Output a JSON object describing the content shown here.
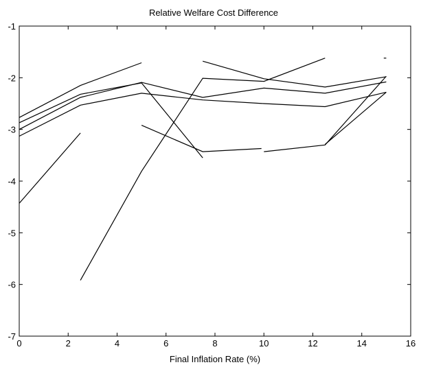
{
  "chart_data": {
    "type": "line",
    "title": "Relative Welfare Cost Difference",
    "xlabel": "Final Inflation Rate (%)",
    "ylabel": "",
    "xlim": [
      0,
      16
    ],
    "ylim": [
      -7,
      -1
    ],
    "xticks": [
      0,
      2,
      4,
      6,
      8,
      10,
      12,
      14,
      16
    ],
    "yticks": [
      -7,
      -6,
      -5,
      -4,
      -3,
      -2,
      -1
    ],
    "grid": false,
    "legend": "none",
    "line_color": "#000000",
    "series": [
      {
        "points": [
          [
            0,
            -2.77
          ],
          [
            2.5,
            -2.15
          ],
          [
            5,
            -1.71
          ]
        ]
      },
      {
        "points": [
          [
            0,
            -2.87
          ],
          [
            2.5,
            -2.32
          ],
          [
            5,
            -2.1
          ],
          [
            7.5,
            -3.55
          ]
        ]
      },
      {
        "points": [
          [
            0,
            -3.0
          ],
          [
            2.5,
            -2.38
          ],
          [
            5,
            -2.09
          ],
          [
            7.5,
            -2.38
          ],
          [
            10,
            -2.2
          ],
          [
            12.5,
            -2.3
          ],
          [
            15,
            -2.08
          ]
        ]
      },
      {
        "points": [
          [
            0,
            -3.13
          ],
          [
            2.5,
            -2.53
          ],
          [
            5,
            -2.3
          ],
          [
            7.5,
            -2.43
          ],
          [
            10,
            -2.5
          ],
          [
            12.5,
            -2.56
          ],
          [
            15,
            -2.28
          ]
        ]
      },
      {
        "points": [
          [
            0,
            -4.43
          ],
          [
            2.5,
            -3.07
          ]
        ]
      },
      {
        "points": [
          [
            2.5,
            -5.92
          ],
          [
            5,
            -3.81
          ],
          [
            7.5,
            -2.01
          ],
          [
            10,
            -2.07
          ],
          [
            12.5,
            -1.62
          ]
        ]
      },
      {
        "points": [
          [
            5,
            -2.92
          ],
          [
            7.5,
            -3.43
          ],
          [
            9.9,
            -3.37
          ]
        ]
      },
      {
        "points": [
          [
            10,
            -3.43
          ],
          [
            12.5,
            -3.3
          ],
          [
            15,
            -1.97
          ]
        ]
      },
      {
        "points": [
          [
            7.5,
            -1.68
          ],
          [
            10,
            -2.02
          ],
          [
            12.5,
            -2.18
          ],
          [
            15,
            -1.98
          ]
        ]
      },
      {
        "points": [
          [
            12.5,
            -3.29
          ],
          [
            15,
            -2.28
          ]
        ]
      },
      {
        "points": [
          [
            14.9,
            -1.62
          ],
          [
            15,
            -1.62
          ]
        ]
      }
    ]
  }
}
